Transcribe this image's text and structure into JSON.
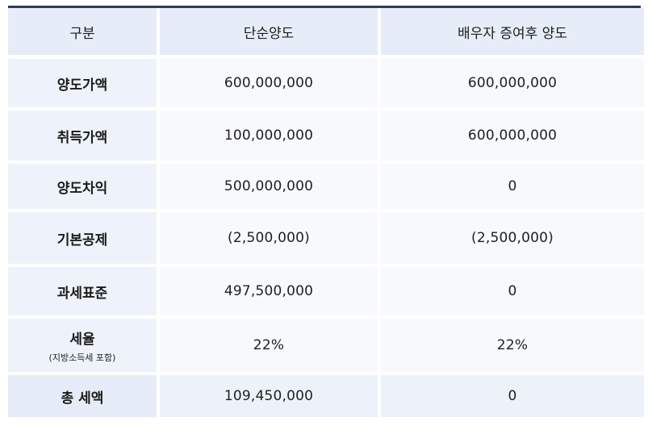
{
  "table": {
    "header": {
      "col0": "구분",
      "col1": "단순양도",
      "col2": "배우자 증여후 양도"
    },
    "rows": [
      {
        "label": "양도가액",
        "sub": "",
        "simple": "600,000,000",
        "gift": "600,000,000"
      },
      {
        "label": "취득가액",
        "sub": "",
        "simple": "100,000,000",
        "gift": "600,000,000"
      },
      {
        "label": "양도차익",
        "sub": "",
        "simple": "500,000,000",
        "gift": "0"
      },
      {
        "label": "기본공제",
        "sub": "",
        "simple": "(2,500,000)",
        "gift": "(2,500,000)"
      },
      {
        "label": "과세표준",
        "sub": "",
        "simple": "497,500,000",
        "gift": "0"
      },
      {
        "label": "세율",
        "sub": "(지방소득세 포함)",
        "simple": "22%",
        "gift": "22%"
      },
      {
        "label": "총 세액",
        "sub": "",
        "simple": "109,450,000",
        "gift": "0"
      }
    ]
  }
}
